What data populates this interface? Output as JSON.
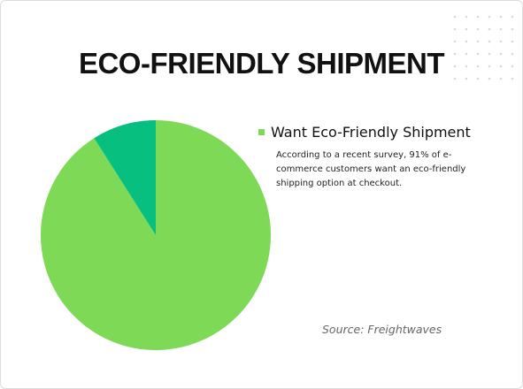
{
  "chart_data": {
    "type": "pie",
    "title": "ECO-FRIENDLY SHIPMENT",
    "categories": [
      "Want Eco-Friendly Shipment",
      null
    ],
    "values": [
      91,
      9
    ],
    "colors": [
      "#7ed957",
      "#07bf7f"
    ],
    "description": "According to a recent survey, 91% of e-commerce customers want an eco-friendly shipping option at checkout.",
    "source": "Source: Freightwaves"
  }
}
